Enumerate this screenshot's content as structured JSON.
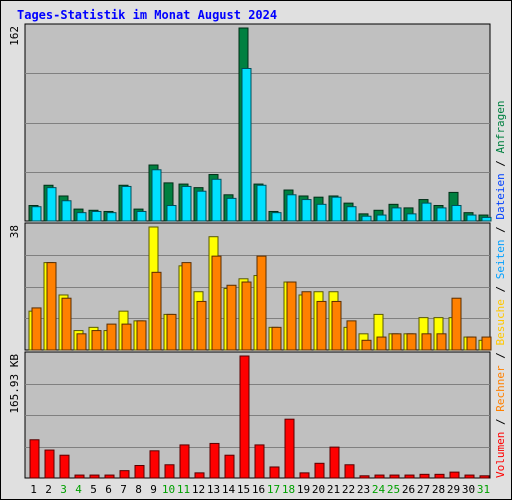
{
  "chart_data": {
    "type": "bar",
    "title": "Tages-Statistik im Monat August 2024",
    "categories": [
      "1",
      "2",
      "3",
      "4",
      "5",
      "6",
      "7",
      "8",
      "9",
      "10",
      "11",
      "12",
      "13",
      "14",
      "15",
      "16",
      "17",
      "18",
      "19",
      "20",
      "21",
      "22",
      "23",
      "24",
      "25",
      "26",
      "27",
      "28",
      "29",
      "30",
      "31"
    ],
    "weekend_days": [
      "3",
      "4",
      "10",
      "11",
      "17",
      "18",
      "24",
      "25",
      "31"
    ],
    "panels": [
      {
        "id": "requests-files",
        "max_label": "162",
        "ymax": 162,
        "series": [
          {
            "name": "Anfragen",
            "color": "#008040",
            "values": [
              13,
              30,
              21,
              10,
              9,
              8,
              30,
              10,
              47,
              32,
              31,
              28,
              39,
              22,
              162,
              31,
              8,
              26,
              21,
              20,
              21,
              15,
              6,
              9,
              14,
              11,
              18,
              13,
              24,
              7,
              5
            ]
          },
          {
            "name": "Dateien",
            "color": "#00e0ff",
            "values": [
              12,
              28,
              17,
              7,
              8,
              7,
              29,
              8,
              43,
              13,
              29,
              25,
              35,
              19,
              128,
              30,
              7,
              22,
              18,
              14,
              20,
              12,
              4,
              5,
              11,
              6,
              15,
              11,
              13,
              5,
              3
            ]
          }
        ]
      },
      {
        "id": "pages-visits",
        "max_label": "38",
        "ymax": 38,
        "series": [
          {
            "name": "Seiten",
            "color": "#ffff00",
            "values": [
              12,
              27,
              17,
              6,
              7,
              6,
              12,
              9,
              38,
              11,
              26,
              18,
              35,
              19,
              22,
              23,
              7,
              21,
              17,
              18,
              18,
              7,
              5,
              11,
              5,
              5,
              10,
              10,
              10,
              4,
              3
            ]
          },
          {
            "name": "Besuche",
            "color": "#ff8000",
            "values": [
              13,
              27,
              16,
              5,
              6,
              8,
              8,
              9,
              24,
              11,
              27,
              15,
              29,
              20,
              21,
              29,
              7,
              21,
              18,
              15,
              15,
              9,
              3,
              4,
              5,
              5,
              5,
              5,
              16,
              4,
              4
            ]
          }
        ]
      },
      {
        "id": "volume",
        "max_label": "165.93 KB",
        "ymax": 165.93,
        "series": [
          {
            "name": "Volumen",
            "color": "#ff0000",
            "values": [
              52,
              38,
              31,
              4,
              4,
              4,
              10,
              17,
              37,
              18,
              45,
              7,
              47,
              31,
              165.93,
              45,
              15,
              80,
              7,
              20,
              42,
              18,
              3,
              4,
              4,
              4,
              5,
              5,
              8,
              4,
              3
            ]
          }
        ]
      }
    ],
    "right_legend": [
      {
        "text": "Volumen",
        "color": "#ff0000"
      },
      {
        "text": " / ",
        "color": "#000000"
      },
      {
        "text": "Rechner",
        "color": "#ff8000"
      },
      {
        "text": " / ",
        "color": "#000000"
      },
      {
        "text": "Besuche",
        "color": "#ffc800"
      },
      {
        "text": " / ",
        "color": "#000000"
      },
      {
        "text": "Seiten",
        "color": "#00a0ff"
      },
      {
        "text": " / ",
        "color": "#000000"
      },
      {
        "text": "Dateien",
        "color": "#0040ff"
      },
      {
        "text": " / ",
        "color": "#000000"
      },
      {
        "text": "Anfragen",
        "color": "#008040"
      }
    ],
    "colors": {
      "plot_background": "#c0c0c0",
      "gridline": "#808080",
      "weekday_label": "#000000",
      "weekend_label": "#00a000"
    }
  }
}
